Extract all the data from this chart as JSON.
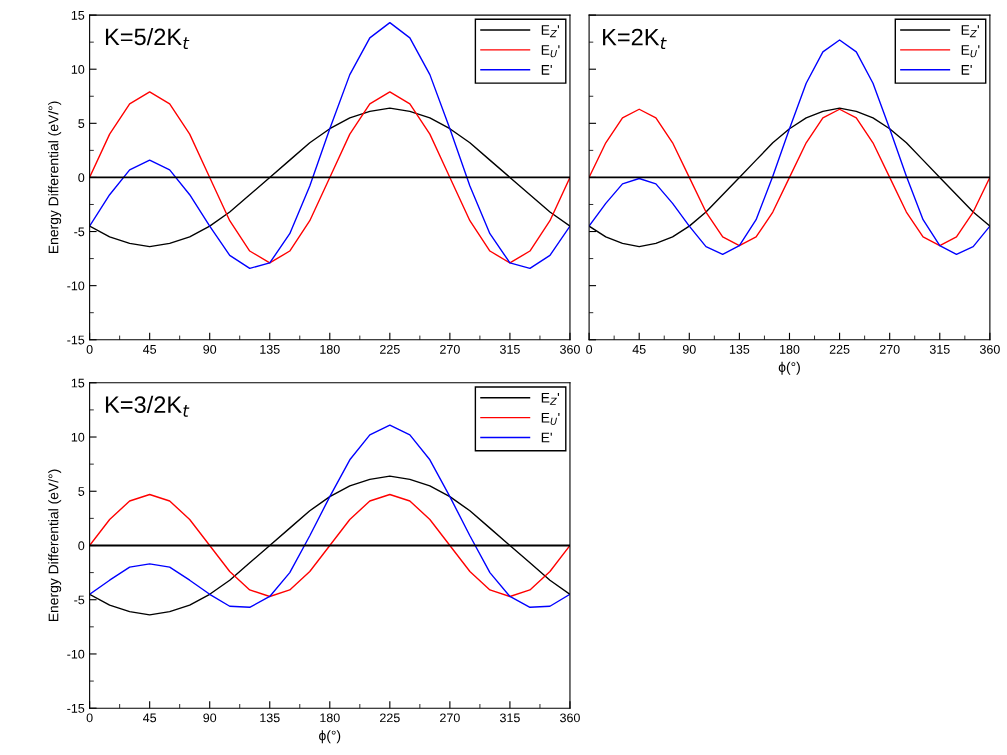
{
  "chart_data": [
    {
      "type": "line",
      "ylabel": "Energy Differential (eV/°)",
      "annotations": [
        "K=5/2K$_{t}$"
      ],
      "x": [
        0,
        15,
        30,
        45,
        60,
        75,
        90,
        105,
        120,
        135,
        150,
        165,
        180,
        195,
        210,
        225,
        240,
        255,
        270,
        285,
        300,
        315,
        330,
        345,
        360
      ],
      "xlim": [
        0,
        360
      ],
      "xticks": [
        0,
        45,
        90,
        135,
        180,
        225,
        270,
        315,
        360
      ],
      "ylim": [
        -15,
        15
      ],
      "yticks": [
        -15,
        -10,
        -5,
        0,
        5,
        10,
        15
      ],
      "legend": "top right",
      "ref_lines": [
        {
          "axis": "y",
          "value": 0,
          "color": "#000000"
        }
      ],
      "series": [
        {
          "name": "E$_{Z}$'",
          "color": "#000000",
          "values": [
            -4.5,
            -5.5,
            -6.1,
            -6.4,
            -6.1,
            -5.5,
            -4.5,
            -3.2,
            -1.6,
            0,
            1.6,
            3.2,
            4.5,
            5.5,
            6.1,
            6.4,
            6.1,
            5.5,
            4.5,
            3.2,
            1.6,
            0,
            -1.6,
            -3.2,
            -4.5
          ]
        },
        {
          "name": "E$_{U}$'",
          "color": "#ff0000",
          "values": [
            0,
            4.0,
            6.8,
            7.9,
            6.8,
            4.0,
            0,
            -4.0,
            -6.8,
            -7.9,
            -6.8,
            -4.0,
            0,
            4.0,
            6.8,
            7.9,
            6.8,
            4.0,
            0,
            -4.0,
            -6.8,
            -7.9,
            -6.8,
            -4.0,
            0
          ]
        },
        {
          "name": "E'",
          "color": "#0000ff",
          "values": [
            -4.5,
            -1.6,
            0.7,
            1.6,
            0.7,
            -1.6,
            -4.5,
            -7.2,
            -8.4,
            -7.9,
            -5.2,
            -0.8,
            4.5,
            9.5,
            12.9,
            14.3,
            12.9,
            9.5,
            4.5,
            -0.8,
            -5.2,
            -7.9,
            -8.4,
            -7.2,
            -4.5
          ]
        }
      ]
    },
    {
      "type": "line",
      "xlabel": "ϕ(°)",
      "annotations": [
        "K=2K$_{t}$"
      ],
      "x": [
        0,
        15,
        30,
        45,
        60,
        75,
        90,
        105,
        120,
        135,
        150,
        165,
        180,
        195,
        210,
        225,
        240,
        255,
        270,
        285,
        300,
        315,
        330,
        345,
        360
      ],
      "xlim": [
        0,
        360
      ],
      "xticks": [
        0,
        45,
        90,
        135,
        180,
        225,
        270,
        315,
        360
      ],
      "ylim": [
        -15,
        15
      ],
      "yticks": [
        -15,
        -10,
        -5,
        0,
        5,
        10,
        15
      ],
      "tick_labels": "x",
      "legend": "top right",
      "ref_lines": [
        {
          "axis": "y",
          "value": 0,
          "color": "#000000"
        }
      ],
      "series": [
        {
          "name": "E$_{Z}$'",
          "color": "#000000",
          "values": [
            -4.5,
            -5.5,
            -6.1,
            -6.4,
            -6.1,
            -5.5,
            -4.5,
            -3.2,
            -1.6,
            0,
            1.6,
            3.2,
            4.5,
            5.5,
            6.1,
            6.4,
            6.1,
            5.5,
            4.5,
            3.2,
            1.6,
            0,
            -1.6,
            -3.2,
            -4.5
          ]
        },
        {
          "name": "E$_{U}$'",
          "color": "#ff0000",
          "values": [
            0,
            3.2,
            5.5,
            6.3,
            5.5,
            3.2,
            0,
            -3.2,
            -5.5,
            -6.3,
            -5.5,
            -3.2,
            0,
            3.2,
            5.5,
            6.3,
            5.5,
            3.2,
            0,
            -3.2,
            -5.5,
            -6.3,
            -5.5,
            -3.2,
            0
          ]
        },
        {
          "name": "E'",
          "color": "#0000ff",
          "values": [
            -4.5,
            -2.4,
            -0.6,
            -0.1,
            -0.6,
            -2.4,
            -4.5,
            -6.4,
            -7.1,
            -6.3,
            -3.9,
            0.1,
            4.5,
            8.7,
            11.6,
            12.7,
            11.6,
            8.7,
            4.5,
            0.1,
            -3.9,
            -6.3,
            -7.1,
            -6.4,
            -4.5
          ]
        }
      ]
    },
    {
      "type": "line",
      "xlabel": "ϕ(°)",
      "ylabel": "Energy Differential (eV/°)",
      "annotations": [
        "K=3/2K$_{t}$"
      ],
      "x": [
        0,
        15,
        30,
        45,
        60,
        75,
        90,
        105,
        120,
        135,
        150,
        165,
        180,
        195,
        210,
        225,
        240,
        255,
        270,
        285,
        300,
        315,
        330,
        345,
        360
      ],
      "xlim": [
        0,
        360
      ],
      "xticks": [
        0,
        45,
        90,
        135,
        180,
        225,
        270,
        315,
        360
      ],
      "ylim": [
        -15,
        15
      ],
      "yticks": [
        -15,
        -10,
        -5,
        0,
        5,
        10,
        15
      ],
      "legend": "top right",
      "ref_lines": [
        {
          "axis": "y",
          "value": 0,
          "color": "#000000"
        }
      ],
      "series": [
        {
          "name": "E$_{Z}$'",
          "color": "#000000",
          "values": [
            -4.5,
            -5.5,
            -6.1,
            -6.4,
            -6.1,
            -5.5,
            -4.5,
            -3.2,
            -1.6,
            0,
            1.6,
            3.2,
            4.5,
            5.5,
            6.1,
            6.4,
            6.1,
            5.5,
            4.5,
            3.2,
            1.6,
            0,
            -1.6,
            -3.2,
            -4.5
          ]
        },
        {
          "name": "E$_{U}$'",
          "color": "#ff0000",
          "values": [
            0,
            2.4,
            4.1,
            4.7,
            4.1,
            2.4,
            0,
            -2.4,
            -4.1,
            -4.7,
            -4.1,
            -2.4,
            0,
            2.4,
            4.1,
            4.7,
            4.1,
            2.4,
            0,
            -2.4,
            -4.1,
            -4.7,
            -4.1,
            -2.4,
            0
          ]
        },
        {
          "name": "E'",
          "color": "#0000ff",
          "values": [
            -4.5,
            -3.2,
            -2.0,
            -1.7,
            -2.0,
            -3.2,
            -4.5,
            -5.6,
            -5.7,
            -4.7,
            -2.5,
            0.9,
            4.5,
            7.9,
            10.2,
            11.1,
            10.2,
            7.9,
            4.5,
            0.9,
            -2.5,
            -4.7,
            -5.7,
            -5.6,
            -4.5
          ]
        }
      ]
    }
  ]
}
